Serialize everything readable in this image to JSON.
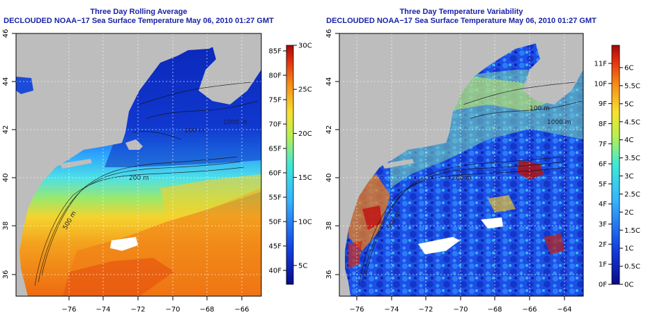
{
  "colors": {
    "land": "#bdbdbd",
    "title": "#1a22a8",
    "ocean_cold": "#1530c8",
    "ocean_warm": "#f08a1c",
    "missing": "#ffffff"
  },
  "axes": {
    "x_ticks": [
      "−76",
      "−74",
      "−72",
      "−70",
      "−68",
      "−66",
      "−64"
    ],
    "y_ticks": [
      "36",
      "38",
      "40",
      "42",
      "44",
      "46"
    ]
  },
  "left_panel": {
    "title": "Three Day Rolling Average",
    "subtitle": "DECLOUDED NOAA−17 Sea Surface Temperature May 06, 2010 01:27 GMT",
    "contour_labels": [
      "200 m",
      "1000 m",
      "200 m",
      "500 m"
    ],
    "colorbar": {
      "fahrenheit_labels": [
        "85F",
        "80F",
        "75F",
        "70F",
        "65F",
        "60F",
        "55F",
        "50F",
        "45F",
        "40F"
      ],
      "celsius_labels": [
        "30C",
        "25C",
        "20C",
        "15C",
        "10C",
        "5C"
      ]
    }
  },
  "right_panel": {
    "title": "Three Day Temperature Variability",
    "subtitle": "DECLOUDED NOAA−17 Sea Surface Temperature May 06, 2010 01:27 GMT",
    "contour_labels": [
      "100 m",
      "1000 m",
      "200 m",
      "500 m"
    ],
    "colorbar": {
      "fahrenheit_labels": [
        "11F",
        "10F",
        "9F",
        "8F",
        "7F",
        "6F",
        "5F",
        "4F",
        "3F",
        "2F",
        "1F",
        "0F"
      ],
      "celsius_labels": [
        "6C",
        "5.5C",
        "5C",
        "4.5C",
        "4C",
        "3.5C",
        "3C",
        "2.5C",
        "2C",
        "1.5C",
        "1C",
        "0.5C",
        "0C"
      ]
    }
  }
}
